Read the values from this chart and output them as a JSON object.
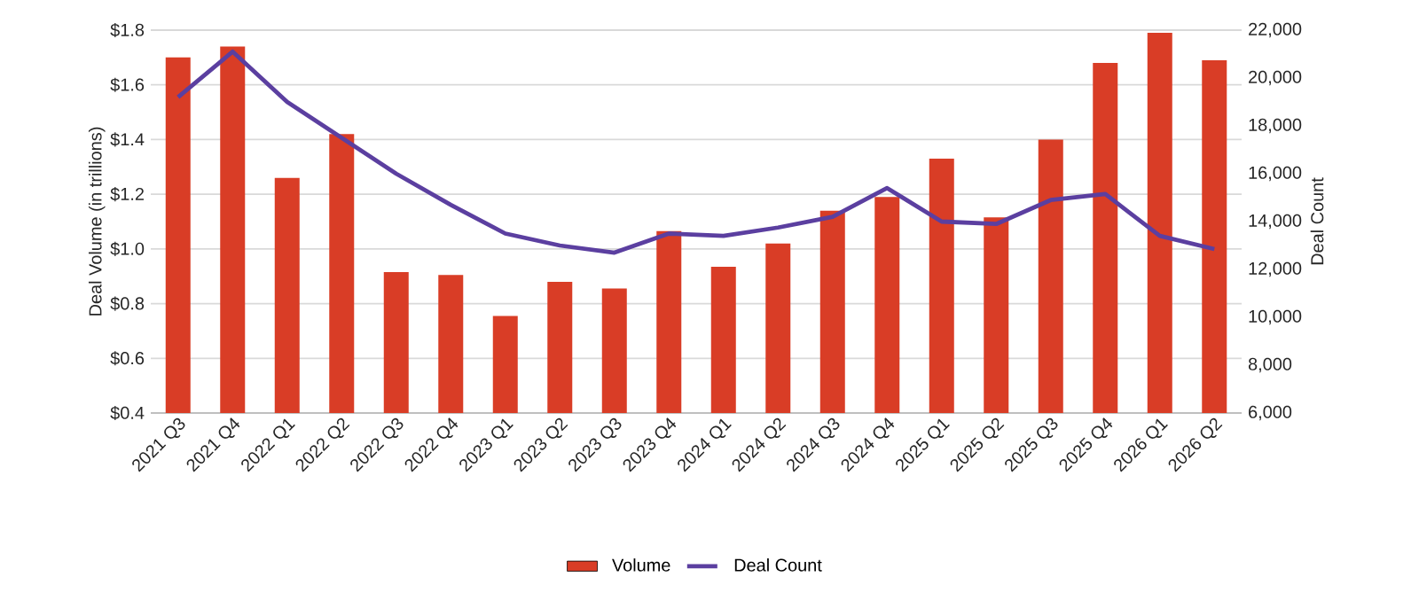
{
  "chart_data": {
    "type": "bar",
    "categories": [
      "2021 Q3",
      "2021 Q4",
      "2022 Q1",
      "2022 Q2",
      "2022 Q3",
      "2022 Q4",
      "2023 Q1",
      "2023 Q2",
      "2023 Q3",
      "2023 Q4",
      "2024 Q1",
      "2024 Q2",
      "2024 Q3",
      "2024 Q4",
      "2025 Q1",
      "2025 Q2",
      "2025 Q3",
      "2025 Q4",
      "2026 Q1",
      "2026 Q2"
    ],
    "series": [
      {
        "name": "Volume",
        "color": "#d93d26",
        "values": [
          1.7,
          1.74,
          1.26,
          1.42,
          0.915,
          0.905,
          0.755,
          0.88,
          0.855,
          1.065,
          0.935,
          1.02,
          1.14,
          1.19,
          1.33,
          1.115,
          1.4,
          1.68,
          1.79,
          1.69
        ]
      },
      {
        "name": "Deal Count",
        "type": "line",
        "axis": "y2",
        "color": "#5b3fa0",
        "values": [
          19200,
          21100,
          19000,
          17500,
          16000,
          14700,
          13500,
          13000,
          12700,
          13500,
          13400,
          13750,
          14200,
          15400,
          14000,
          13900,
          14900,
          15150,
          13400,
          12850
        ]
      }
    ],
    "ylabel": "Deal Volume (in trillions)",
    "y2label": "Deal Count",
    "ylim": [
      0.4,
      1.8
    ],
    "yticks": [
      {
        "value": 0.4,
        "label": "$0.4"
      },
      {
        "value": 0.6,
        "label": "$0.6"
      },
      {
        "value": 0.8,
        "label": "$0.8"
      },
      {
        "value": 1.0,
        "label": "$1.0"
      },
      {
        "value": 1.2,
        "label": "$1.2"
      },
      {
        "value": 1.4,
        "label": "$1.4"
      },
      {
        "value": 1.6,
        "label": "$1.6"
      },
      {
        "value": 1.8,
        "label": "$1.8"
      }
    ],
    "y2lim": [
      6000,
      22000
    ],
    "y2ticks": [
      {
        "value": 6000,
        "label": "6,000"
      },
      {
        "value": 8000,
        "label": "8,000"
      },
      {
        "value": 10000,
        "label": "10,000"
      },
      {
        "value": 12000,
        "label": "12,000"
      },
      {
        "value": 14000,
        "label": "14,000"
      },
      {
        "value": 16000,
        "label": "16,000"
      },
      {
        "value": 18000,
        "label": "18,000"
      },
      {
        "value": 20000,
        "label": "20,000"
      },
      {
        "value": 22000,
        "label": "22,000"
      }
    ],
    "grid": "y",
    "legend": "bottom"
  }
}
